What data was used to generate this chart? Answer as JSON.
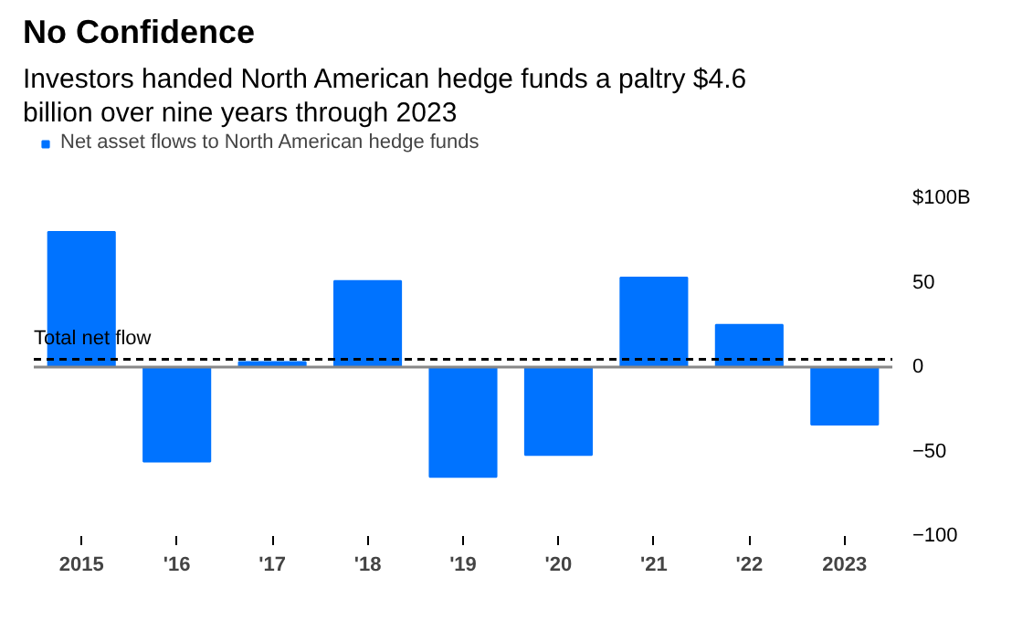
{
  "chart_data": {
    "type": "bar",
    "title": "No Confidence",
    "subtitle": "Investors handed North American hedge funds a paltry $4.6 billion over nine years through 2023",
    "categories": [
      "2015",
      "'16",
      "'17",
      "'18",
      "'19",
      "'20",
      "'21",
      "'22",
      "2023"
    ],
    "series": [
      {
        "name": "Net asset flows to North American hedge funds",
        "color": "#0073ff",
        "values": [
          80,
          -56,
          3,
          51,
          -65,
          -52,
          53,
          25,
          -34
        ]
      }
    ],
    "ylim": [
      -100,
      100
    ],
    "yticks": [
      {
        "value": 100,
        "label": "$100B"
      },
      50,
      0,
      -50,
      -100
    ],
    "ref_lines": [
      {
        "axis": "y",
        "value": 0,
        "color": "#888888",
        "line_style": "solid"
      },
      {
        "axis": "y",
        "value": 4.6,
        "label": "Total net flow",
        "color": "#000000",
        "line_style": "dashed"
      }
    ],
    "grid": false,
    "legend": "top left"
  }
}
